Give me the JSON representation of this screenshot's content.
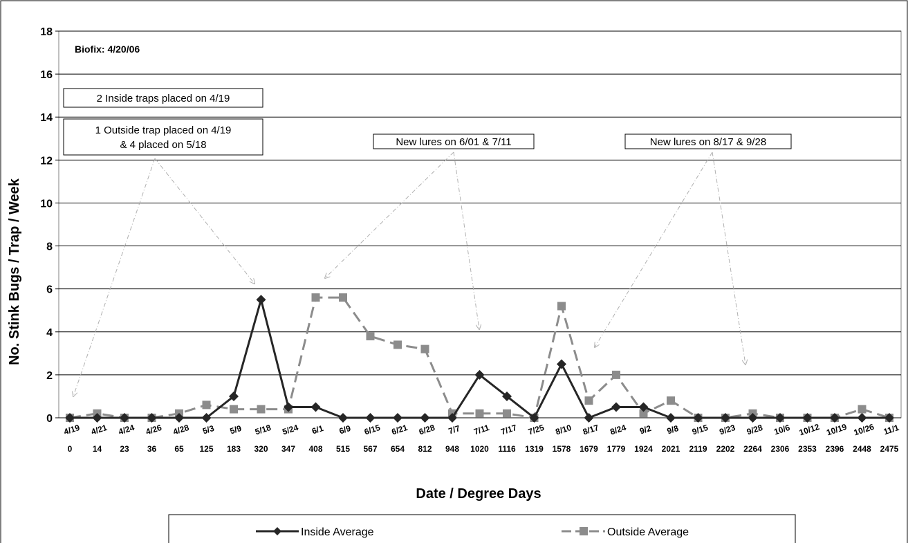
{
  "chart_data": {
    "type": "line",
    "title": "",
    "xlabel": "Date / Degree Days",
    "ylabel": "No. Stink Bugs / Trap / Week",
    "ylim": [
      0,
      18
    ],
    "yticks": [
      0,
      2,
      4,
      6,
      8,
      10,
      12,
      14,
      16,
      18
    ],
    "grid": "horizontal",
    "legend_position": "bottom",
    "categories": [
      "4/19",
      "4/21",
      "4/24",
      "4/26",
      "4/28",
      "5/3",
      "5/9",
      "5/18",
      "5/24",
      "6/1",
      "6/9",
      "6/15",
      "6/21",
      "6/28",
      "7/7",
      "7/11",
      "7/17",
      "7/25",
      "8/10",
      "8/17",
      "8/24",
      "9/2",
      "9/8",
      "9/15",
      "9/23",
      "9/28",
      "10/6",
      "10/12",
      "10/19",
      "10/26",
      "11/1"
    ],
    "degree_days": [
      "0",
      "14",
      "23",
      "36",
      "65",
      "125",
      "183",
      "320",
      "347",
      "408",
      "515",
      "567",
      "654",
      "812",
      "948",
      "1020",
      "1116",
      "1319",
      "1578",
      "1679",
      "1779",
      "1924",
      "2021",
      "2119",
      "2202",
      "2264",
      "2306",
      "2353",
      "2396",
      "2448",
      "2475"
    ],
    "series": [
      {
        "name": "Inside Average",
        "color": "#262626",
        "marker": "diamond",
        "line_style": "solid",
        "values": [
          0,
          0,
          0,
          0,
          0,
          0,
          1,
          5.5,
          0.5,
          0.5,
          0,
          0,
          0,
          0,
          0,
          2,
          1,
          0,
          2.5,
          0,
          0.5,
          0.5,
          0,
          0,
          0,
          0,
          0,
          0,
          0,
          0,
          0
        ]
      },
      {
        "name": "Outside Average",
        "color": "#8c8c8c",
        "marker": "square",
        "line_style": "dashed",
        "values": [
          0,
          0.2,
          0,
          0,
          0.2,
          0.6,
          0.4,
          0.4,
          0.4,
          5.6,
          5.6,
          3.8,
          3.4,
          3.2,
          0.2,
          0.2,
          0.2,
          0,
          5.2,
          0.8,
          2,
          0.2,
          0.8,
          0,
          0,
          0.2,
          0,
          0,
          0,
          0.4,
          0
        ]
      }
    ],
    "annotations": [
      {
        "id": "biofix",
        "text": "Biofix: 4/20/06"
      },
      {
        "id": "inside-traps",
        "text": "2 Inside traps placed on 4/19"
      },
      {
        "id": "outside-trap",
        "lines": [
          "1 Outside trap placed on 4/19",
          "& 4 placed on 5/18"
        ]
      },
      {
        "id": "lures-1",
        "text": "New lures on 6/01 & 7/11"
      },
      {
        "id": "lures-2",
        "text": "New lures on 8/17 &  9/28"
      }
    ]
  }
}
